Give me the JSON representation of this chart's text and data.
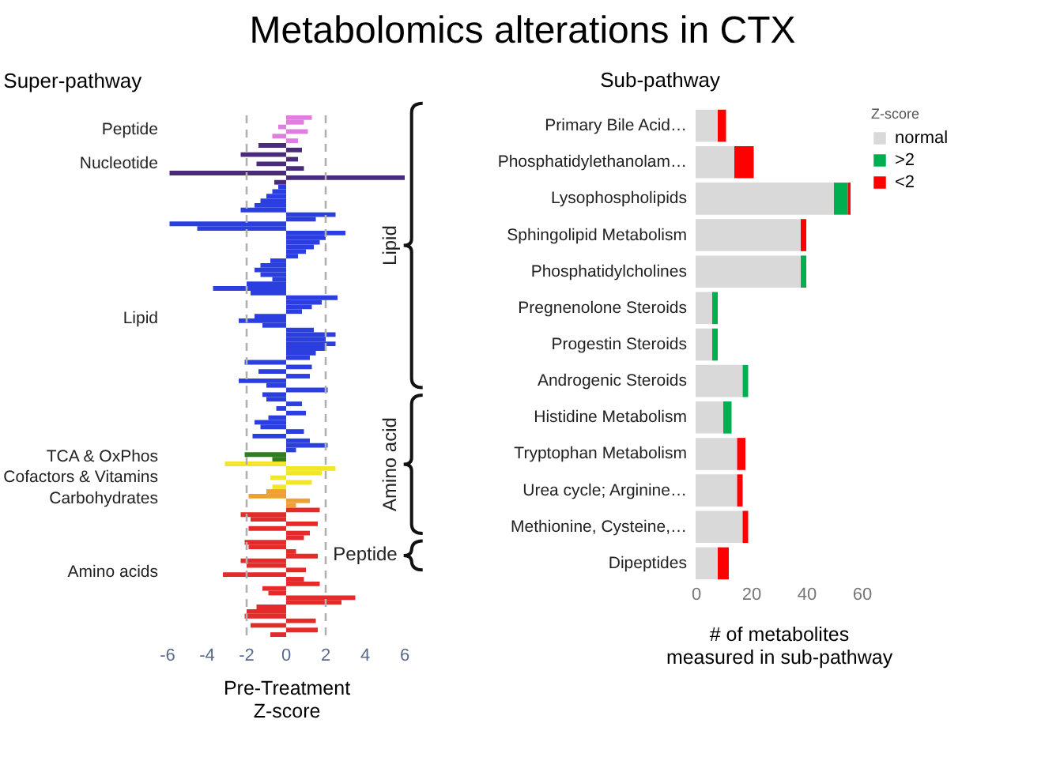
{
  "chart_data": [
    {
      "type": "bar",
      "orientation": "horizontal",
      "title": "Metabolomics alterations in CTX",
      "ylabel": "Super-pathway",
      "xlabel": "Pre-Treatment\nZ-score",
      "tick_labels": "x",
      "xlim": [
        -6,
        6
      ],
      "xticks": [
        -6,
        -4,
        -2,
        0,
        2,
        4,
        6
      ],
      "ref_lines": [
        {
          "axis": "x",
          "value": -2,
          "color": "#b0b0b0",
          "line_style": "dashed"
        },
        {
          "axis": "x",
          "value": 2,
          "color": "#b0b0b0",
          "line_style": "dashed"
        }
      ],
      "annotations": [
        "Peptide",
        "Nucleotide",
        "Lipid",
        "TCA & OxPhos",
        "Cofactors & Vitamins",
        "Carbohydrates",
        "Amino acids"
      ],
      "categories": [
        null,
        null,
        null,
        null,
        null,
        null,
        null,
        null,
        null,
        null,
        null,
        null,
        null,
        null,
        null,
        null,
        null,
        null,
        null,
        null,
        null,
        null,
        null,
        null,
        null,
        null,
        null,
        null,
        null,
        null,
        null,
        null,
        null,
        null,
        null,
        null,
        null,
        null,
        null,
        null,
        null,
        null,
        null,
        null,
        null,
        null,
        null,
        null,
        null,
        null,
        null,
        null,
        null,
        null,
        null,
        null,
        null,
        null,
        null,
        null,
        null,
        null,
        null,
        null,
        null,
        null,
        null,
        null,
        null,
        null,
        null,
        null,
        null,
        null,
        null,
        null,
        null,
        null,
        null,
        null,
        null,
        null,
        null,
        null,
        null,
        null,
        null,
        null,
        null,
        null,
        null,
        null,
        null,
        null,
        null,
        null,
        null,
        null,
        null,
        null,
        null,
        null,
        null,
        null,
        null,
        null,
        null,
        null,
        null,
        null,
        null,
        null,
        null
      ],
      "values": [
        1.3,
        0.9,
        -0.4,
        1.1,
        -0.7,
        0.6,
        -1.4,
        0.8,
        -2.3,
        0.6,
        -1.5,
        0.9,
        -5.9,
        6.0,
        -0.6,
        -0.4,
        -0.7,
        -1.0,
        -1.3,
        -1.6,
        -2.3,
        2.5,
        1.5,
        -5.9,
        -4.5,
        3.0,
        2.0,
        1.7,
        1.4,
        1.0,
        0.6,
        -0.8,
        -1.3,
        -1.6,
        -1.3,
        -0.7,
        -2.0,
        -3.7,
        -1.8,
        2.6,
        1.8,
        1.3,
        0.8,
        -1.6,
        -2.4,
        -1.2,
        1.4,
        2.5,
        2.0,
        2.5,
        2.0,
        1.5,
        1.2,
        -2.1,
        1.3,
        -1.4,
        1.2,
        -2.4,
        -1.0,
        2.1,
        -1.2,
        -1.0,
        0.8,
        -0.5,
        1.0,
        -0.9,
        -1.6,
        -1.3,
        0.9,
        -1.7,
        1.2,
        2.1,
        0.5,
        -2.1,
        -0.7,
        -3.1,
        2.5,
        1.8,
        -0.8,
        1.3,
        -0.7,
        -1.0,
        -1.9,
        1.2,
        0.5,
        1.7,
        -2.3,
        -1.8,
        1.6,
        -1.9,
        1.2,
        0.9,
        -2.1,
        -1.9,
        0.5,
        1.6,
        -2.3,
        -2.0,
        1.0,
        -3.2,
        0.9,
        1.7,
        -1.2,
        -0.9,
        3.5,
        2.8,
        -1.5,
        -2.0,
        -2.1,
        1.5,
        -1.8,
        1.6,
        -0.8
      ],
      "colors": [
        "#e07ee0",
        "#e07ee0",
        "#e07ee0",
        "#e07ee0",
        "#e07ee0",
        "#e07ee0",
        "#4a2a7a",
        "#4a2a7a",
        "#4a2a7a",
        "#4a2a7a",
        "#4a2a7a",
        "#4a2a7a",
        "#4a2a7a",
        "#4a2a7a",
        "#4a2a7a",
        "#2b3fe0",
        "#2b3fe0",
        "#2b3fe0",
        "#2b3fe0",
        "#2b3fe0",
        "#2b3fe0",
        "#2b3fe0",
        "#2b3fe0",
        "#2b3fe0",
        "#2b3fe0",
        "#2b3fe0",
        "#2b3fe0",
        "#2b3fe0",
        "#2b3fe0",
        "#2b3fe0",
        "#2b3fe0",
        "#2b3fe0",
        "#2b3fe0",
        "#2b3fe0",
        "#2b3fe0",
        "#2b3fe0",
        "#2b3fe0",
        "#2b3fe0",
        "#2b3fe0",
        "#2b3fe0",
        "#2b3fe0",
        "#2b3fe0",
        "#2b3fe0",
        "#2b3fe0",
        "#2b3fe0",
        "#2b3fe0",
        "#2b3fe0",
        "#2b3fe0",
        "#2b3fe0",
        "#2b3fe0",
        "#2b3fe0",
        "#2b3fe0",
        "#2b3fe0",
        "#2b3fe0",
        "#2b3fe0",
        "#2b3fe0",
        "#2b3fe0",
        "#2b3fe0",
        "#2b3fe0",
        "#2b3fe0",
        "#2b3fe0",
        "#2b3fe0",
        "#2b3fe0",
        "#2b3fe0",
        "#2b3fe0",
        "#2b3fe0",
        "#2b3fe0",
        "#2b3fe0",
        "#2b3fe0",
        "#2b3fe0",
        "#2b3fe0",
        "#2b3fe0",
        "#2b3fe0",
        "#2e7d1e",
        "#2e7d1e",
        "#f2e62a",
        "#f2e62a",
        "#f2e62a",
        "#f2e62a",
        "#f2e62a",
        "#f2e62a",
        "#f0a030",
        "#f0a030",
        "#f0a030",
        "#f0a030",
        "#e52a2a",
        "#e52a2a",
        "#e52a2a",
        "#e52a2a",
        "#e52a2a",
        "#e52a2a",
        "#e52a2a",
        "#e52a2a",
        "#e52a2a",
        "#e52a2a",
        "#e52a2a",
        "#e52a2a",
        "#e52a2a",
        "#e52a2a",
        "#e52a2a",
        "#e52a2a",
        "#e52a2a",
        "#e52a2a",
        "#e52a2a",
        "#e52a2a",
        "#e52a2a",
        "#e52a2a",
        "#e52a2a",
        "#e52a2a",
        "#e52a2a",
        "#e52a2a",
        "#e52a2a",
        "#e52a2a"
      ]
    },
    {
      "type": "bar",
      "orientation": "horizontal",
      "stacked": true,
      "ylabel": "Sub-pathway",
      "xlabel": "# of metabolites\nmeasured in sub-pathway",
      "legend_title": "Z-score",
      "legend": "right",
      "xlim": [
        0,
        60
      ],
      "xticks": [
        0,
        20,
        40,
        60
      ],
      "categories": [
        "Primary Bile Acid…",
        "Phosphatidylethanolam…",
        "Lysophospholipids",
        "Sphingolipid Metabolism",
        "Phosphatidylcholines",
        "Pregnenolone Steroids",
        "Progestin Steroids",
        "Androgenic Steroids",
        "Histidine Metabolism",
        "Tryptophan Metabolism",
        "Urea cycle; Arginine…",
        "Methionine, Cysteine,…",
        "Dipeptides"
      ],
      "series": [
        {
          "name": "normal",
          "color": "#d9d9d9",
          "values": [
            8,
            14,
            50,
            38,
            38,
            6,
            6,
            17,
            10,
            15,
            15,
            17,
            8
          ]
        },
        {
          "name": ">2",
          "color": "#00b050",
          "values": [
            null,
            null,
            5,
            null,
            2,
            2,
            2,
            2,
            3,
            null,
            null,
            null,
            null
          ]
        },
        {
          "name": "<2",
          "color": "#ff0000",
          "values": [
            3,
            7,
            1,
            2,
            null,
            null,
            null,
            null,
            null,
            3,
            2,
            2,
            4
          ]
        }
      ],
      "annotations": [
        "Lipid",
        "Amino acid",
        "Peptide"
      ]
    }
  ]
}
